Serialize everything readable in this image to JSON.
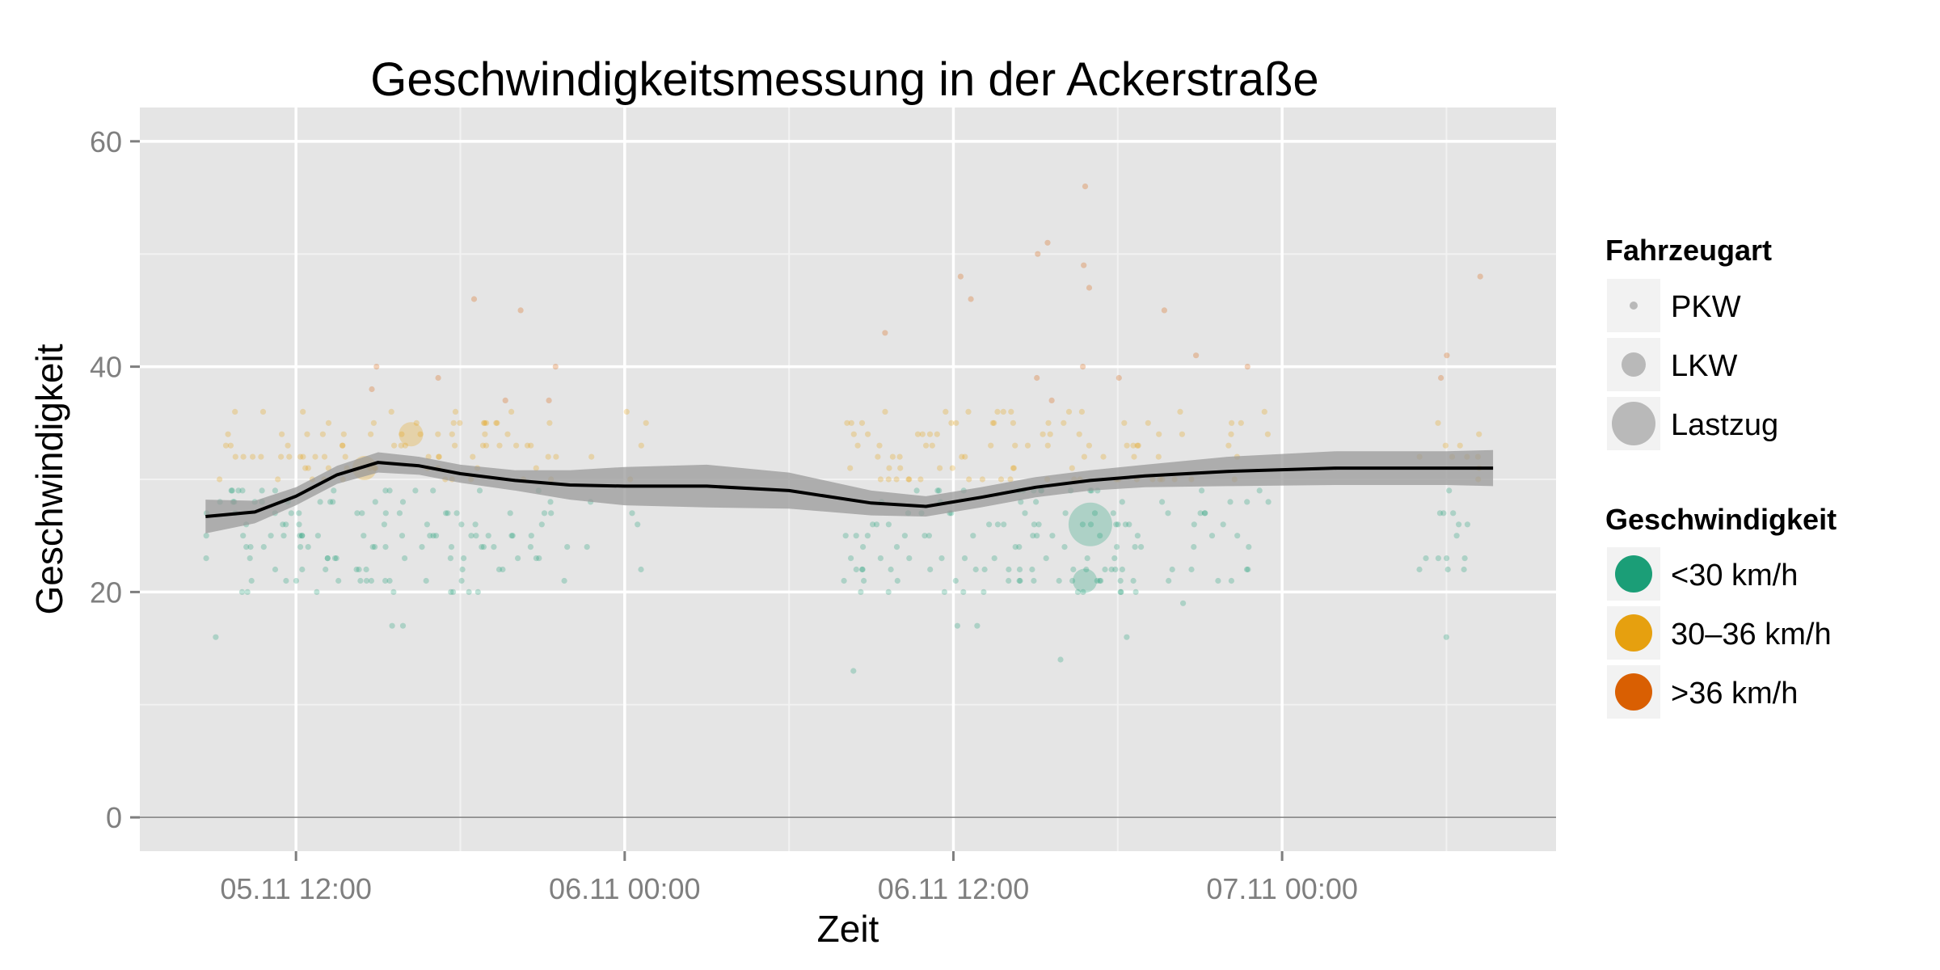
{
  "chart_data": {
    "type": "scatter",
    "title": "Geschwindigkeitsmessung in der Ackerstraße",
    "xlabel": "Zeit",
    "ylabel": "Geschwindigkeit",
    "x_ticks": [
      {
        "label": "05.11 12:00",
        "hour": 12
      },
      {
        "label": "06.11 00:00",
        "hour": 24
      },
      {
        "label": "06.11 12:00",
        "hour": 36
      },
      {
        "label": "07.11 00:00",
        "hour": 48
      }
    ],
    "x_unit": "hours since 05.11 00:00",
    "xlim": [
      6.3,
      58.0
    ],
    "y_ticks": [
      0,
      20,
      40,
      60
    ],
    "ylim": [
      -3,
      63
    ],
    "grid": true,
    "legend_placement": "right",
    "legends": {
      "size": {
        "title": "Fahrzeugart",
        "entries": [
          {
            "label": "PKW",
            "size": "small"
          },
          {
            "label": "LKW",
            "size": "medium"
          },
          {
            "label": "Lastzug",
            "size": "large"
          }
        ]
      },
      "color": {
        "title": "Geschwindigkeit",
        "entries": [
          {
            "label": "<30 km/h",
            "color": "#1b9e77"
          },
          {
            "label": "30–36 km/h",
            "color": "#e6a00f"
          },
          {
            "label": ">36 km/h",
            "color": "#d95f02"
          }
        ]
      }
    },
    "smooth_line": {
      "x": [
        8.7,
        10.5,
        12.0,
        13.5,
        15.0,
        16.5,
        18.0,
        20.0,
        22.0,
        24.0,
        27.0,
        30.0,
        33.0,
        35.0,
        37.0,
        39.0,
        41.0,
        43.0,
        46.0,
        50.0,
        54.0,
        55.7
      ],
      "y": [
        26.7,
        27.1,
        28.5,
        30.4,
        31.5,
        31.2,
        30.5,
        29.9,
        29.5,
        29.4,
        29.4,
        29.0,
        27.9,
        27.6,
        28.4,
        29.3,
        29.9,
        30.3,
        30.7,
        31.0,
        31.0,
        31.0
      ],
      "band_halfwidth": [
        1.5,
        1.0,
        0.8,
        0.8,
        0.9,
        0.8,
        0.8,
        0.9,
        1.3,
        1.7,
        1.9,
        1.6,
        1.1,
        0.9,
        0.9,
        0.9,
        0.9,
        1.0,
        1.3,
        1.5,
        1.5,
        1.6
      ],
      "color": "#000000",
      "band_color": "#999999"
    },
    "point_clusters": [
      {
        "x_range": [
          8.7,
          13.0
        ],
        "y_range": [
          14,
          41
        ],
        "n": 70
      },
      {
        "x_range": [
          13.0,
          19.0
        ],
        "y_range": [
          15,
          47
        ],
        "n": 110
      },
      {
        "x_range": [
          19.0,
          21.5
        ],
        "y_range": [
          13,
          46
        ],
        "n": 35
      },
      {
        "x_range": [
          21.5,
          25.0
        ],
        "y_range": [
          17,
          48
        ],
        "n": 12
      },
      {
        "x_range": [
          32.0,
          38.0
        ],
        "y_range": [
          13,
          52
        ],
        "n": 95
      },
      {
        "x_range": [
          38.0,
          43.0
        ],
        "y_range": [
          12,
          60
        ],
        "n": 105
      },
      {
        "x_range": [
          43.0,
          47.5
        ],
        "y_range": [
          15,
          50
        ],
        "n": 45
      },
      {
        "x_range": [
          53.0,
          55.7
        ],
        "y_range": [
          14,
          48
        ],
        "n": 28
      }
    ],
    "large_points": [
      {
        "x": 41.0,
        "y": 26,
        "vehicle": "Lastzug",
        "speed_class": "<30 km/h"
      },
      {
        "x": 40.8,
        "y": 21,
        "vehicle": "LKW",
        "speed_class": "<30 km/h"
      },
      {
        "x": 16.2,
        "y": 34,
        "vehicle": "LKW",
        "speed_class": "30–36 km/h"
      },
      {
        "x": 14.5,
        "y": 31,
        "vehicle": "LKW",
        "speed_class": "30–36 km/h"
      }
    ],
    "colors": {
      "panel": "#e5e5e5",
      "grid_major": "#ffffff",
      "grid_minor": "#f2f2f2",
      "slow": "#1b9e77",
      "medium": "#e6a00f",
      "fast": "#d95f02"
    }
  }
}
